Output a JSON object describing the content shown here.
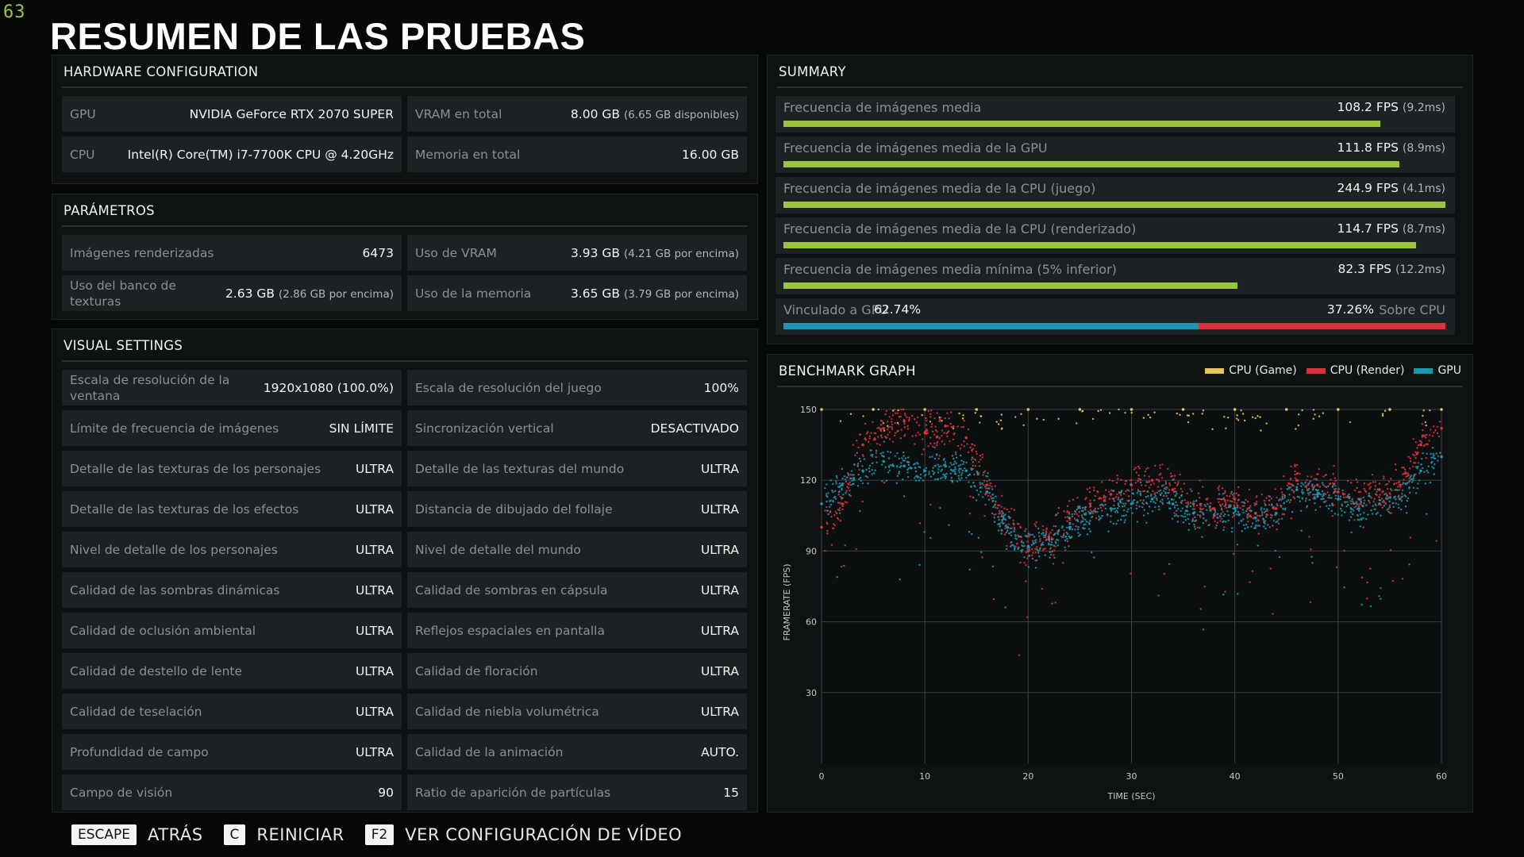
{
  "fps_counter": "63",
  "page_title": "RESUMEN DE LAS PRUEBAS",
  "hardware": {
    "title": "HARDWARE CONFIGURATION",
    "rows": [
      {
        "label": "GPU",
        "value": "NVIDIA GeForce RTX 2070 SUPER",
        "sub": ""
      },
      {
        "label": "VRAM en total",
        "value": "8.00 GB",
        "sub": "(6.65 GB disponibles)"
      },
      {
        "label": "CPU",
        "value": "Intel(R) Core(TM) i7-7700K CPU @ 4.20GHz",
        "sub": ""
      },
      {
        "label": "Memoria en total",
        "value": "16.00 GB",
        "sub": ""
      }
    ]
  },
  "params": {
    "title": "PARÁMETROS",
    "rows": [
      {
        "label": "Imágenes renderizadas",
        "value": "6473",
        "sub": ""
      },
      {
        "label": "Uso de VRAM",
        "value": "3.93 GB",
        "sub": "(4.21 GB por encima)"
      },
      {
        "label": "Uso del banco de texturas",
        "value": "2.63 GB",
        "sub": "(2.86 GB por encima)"
      },
      {
        "label": "Uso de la memoria",
        "value": "3.65 GB",
        "sub": "(3.79 GB por encima)"
      }
    ]
  },
  "visual": {
    "title": "VISUAL SETTINGS",
    "rows": [
      {
        "label": "Escala de resolución de la ventana",
        "value": "1920x1080 (100.0%)"
      },
      {
        "label": "Escala de resolución del juego",
        "value": "100%"
      },
      {
        "label": "Límite de frecuencia de imágenes",
        "value": "SIN LÍMITE"
      },
      {
        "label": "Sincronización vertical",
        "value": "DESACTIVADO"
      },
      {
        "label": "Detalle de las texturas de los personajes",
        "value": "ULTRA"
      },
      {
        "label": "Detalle de las texturas del mundo",
        "value": "ULTRA"
      },
      {
        "label": "Detalle de las texturas de los efectos",
        "value": "ULTRA"
      },
      {
        "label": "Distancia de dibujado del follaje",
        "value": "ULTRA"
      },
      {
        "label": "Nivel de detalle de los personajes",
        "value": "ULTRA"
      },
      {
        "label": "Nivel de detalle del mundo",
        "value": "ULTRA"
      },
      {
        "label": "Calidad de las sombras dinámicas",
        "value": "ULTRA"
      },
      {
        "label": "Calidad de sombras en cápsula",
        "value": "ULTRA"
      },
      {
        "label": "Calidad de oclusión ambiental",
        "value": "ULTRA"
      },
      {
        "label": "Reflejos espaciales en pantalla",
        "value": "ULTRA"
      },
      {
        "label": "Calidad de destello de lente",
        "value": "ULTRA"
      },
      {
        "label": "Calidad de floración",
        "value": "ULTRA"
      },
      {
        "label": "Calidad de teselación",
        "value": "ULTRA"
      },
      {
        "label": "Calidad de niebla volumétrica",
        "value": "ULTRA"
      },
      {
        "label": "Profundidad de campo",
        "value": "ULTRA"
      },
      {
        "label": "Calidad de la animación",
        "value": "AUTO."
      },
      {
        "label": "Campo de visión",
        "value": "90"
      },
      {
        "label": "Ratio de aparición de partículas",
        "value": "15"
      }
    ]
  },
  "summary": {
    "title": "SUMMARY",
    "rows": [
      {
        "label": "Frecuencia de imágenes media",
        "value": "108.2 FPS",
        "sub": "(9.2ms)",
        "fill": 0.902
      },
      {
        "label": "Frecuencia de imágenes media de la GPU",
        "value": "111.8 FPS",
        "sub": "(8.9ms)",
        "fill": 0.931
      },
      {
        "label": "Frecuencia de imágenes media de la CPU (juego)",
        "value": "244.9 FPS",
        "sub": "(4.1ms)",
        "fill": 1.0
      },
      {
        "label": "Frecuencia de imágenes media de la CPU (renderizado)",
        "value": "114.7 FPS",
        "sub": "(8.7ms)",
        "fill": 0.956
      },
      {
        "label": "Frecuencia de imágenes media mínima (5% inferior)",
        "value": "82.3 FPS",
        "sub": "(12.2ms)",
        "fill": 0.686
      }
    ],
    "bound": {
      "left_label": "Vinculado a GPU",
      "left_value": "62.74%",
      "right_value": "37.26%",
      "right_label": "Sobre CPU",
      "gpu_fraction": 0.6274,
      "gpu_color": "#1b98b0",
      "cpu_color": "#d8323a"
    },
    "accent_color": "#9bc53d"
  },
  "graph": {
    "title": "BENCHMARK GRAPH",
    "legend": [
      {
        "name": "CPU (Game)",
        "color": "#e6c85a"
      },
      {
        "name": "CPU (Render)",
        "color": "#d8323a"
      },
      {
        "name": "GPU",
        "color": "#1b98b0"
      }
    ]
  },
  "chart_data": {
    "type": "scatter",
    "title": "BENCHMARK GRAPH",
    "xlabel": "TIME (SEC)",
    "ylabel": "FRAMERATE (FPS)",
    "xlim": [
      0,
      60
    ],
    "ylim": [
      0,
      150
    ],
    "xticks": [
      "0",
      "10",
      "20",
      "30",
      "40",
      "50",
      "60"
    ],
    "yticks": [
      "30",
      "60",
      "90",
      "120",
      "150"
    ],
    "grid": true,
    "legend_position": "top-right",
    "series": [
      {
        "name": "CPU (Render)",
        "color": "#d8323a",
        "x": [
          0,
          2,
          4,
          6,
          8,
          10,
          12,
          14,
          16,
          18,
          20,
          22,
          24,
          26,
          28,
          30,
          32,
          34,
          36,
          38,
          40,
          42,
          44,
          46,
          48,
          50,
          52,
          54,
          56,
          58,
          60
        ],
        "y": [
          100,
          110,
          135,
          142,
          145,
          140,
          143,
          138,
          118,
          100,
          90,
          96,
          104,
          110,
          114,
          118,
          120,
          116,
          110,
          108,
          112,
          106,
          108,
          120,
          118,
          115,
          112,
          116,
          118,
          135,
          142
        ]
      },
      {
        "name": "GPU",
        "color": "#1b98b0",
        "x": [
          0,
          2,
          4,
          6,
          8,
          10,
          12,
          14,
          16,
          18,
          20,
          22,
          24,
          26,
          28,
          30,
          32,
          34,
          36,
          38,
          40,
          42,
          44,
          46,
          48,
          50,
          52,
          54,
          56,
          58,
          60
        ],
        "y": [
          110,
          118,
          124,
          128,
          126,
          124,
          126,
          124,
          115,
          100,
          92,
          95,
          100,
          106,
          108,
          110,
          112,
          110,
          106,
          105,
          108,
          104,
          106,
          116,
          114,
          112,
          108,
          110,
          112,
          124,
          130
        ]
      },
      {
        "name": "CPU (Game)",
        "color": "#e6c85a",
        "x": [
          0,
          5,
          10,
          15,
          20,
          25,
          30,
          35,
          40,
          45,
          50,
          55,
          60
        ],
        "y": [
          150,
          150,
          150,
          150,
          150,
          150,
          150,
          150,
          150,
          150,
          150,
          150,
          150
        ]
      }
    ]
  },
  "footer": [
    {
      "key": "ESCAPE",
      "label": "ATRÁS"
    },
    {
      "key": "C",
      "label": "REINICIAR"
    },
    {
      "key": "F2",
      "label": "VER CONFIGURACIÓN DE VÍDEO"
    }
  ]
}
